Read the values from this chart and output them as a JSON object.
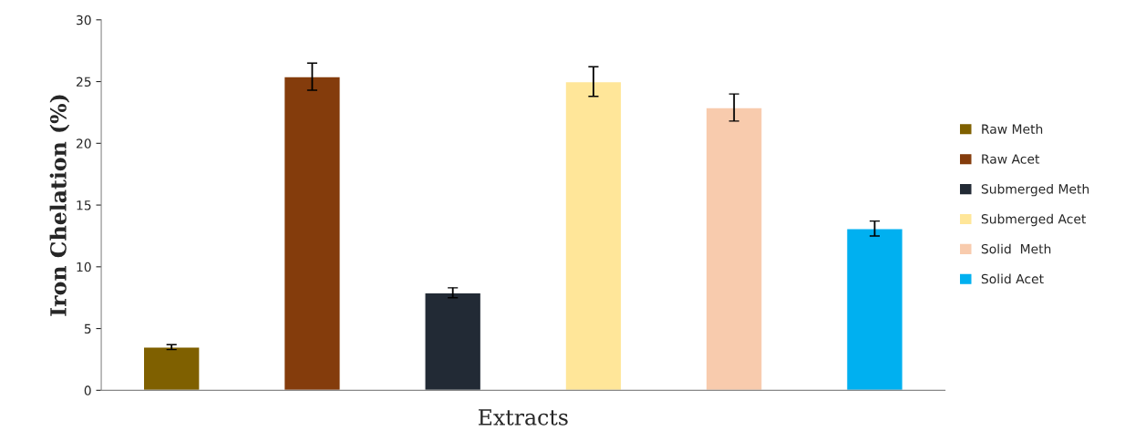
{
  "chart_data": {
    "type": "bar",
    "xlabel": "Extracts",
    "ylabel": "Iron Chelation (%)",
    "categories": [
      null,
      null,
      null,
      null,
      null,
      null
    ],
    "series": [
      {
        "name": "Raw Meth",
        "color": "#7f6000",
        "values": [
          3.5,
          null,
          null,
          null,
          null,
          null
        ],
        "errors": [
          0.2,
          null,
          null,
          null,
          null,
          null
        ]
      },
      {
        "name": "Raw Acet",
        "color": "#843c0c",
        "values": [
          null,
          25.4,
          null,
          null,
          null,
          null
        ],
        "errors": [
          null,
          1.1,
          null,
          null,
          null,
          null
        ]
      },
      {
        "name": "Submerged Meth",
        "color": "#222a35",
        "values": [
          null,
          null,
          7.9,
          null,
          null,
          null
        ],
        "errors": [
          null,
          null,
          0.4,
          null,
          null,
          null
        ]
      },
      {
        "name": "Submerged Acet",
        "color": "#ffe699",
        "values": [
          null,
          null,
          null,
          25.0,
          null,
          null
        ],
        "errors": [
          null,
          null,
          null,
          1.2,
          null,
          null
        ]
      },
      {
        "name": "Solid  Meth",
        "color": "#f8cbad",
        "values": [
          null,
          null,
          null,
          null,
          22.9,
          null
        ],
        "errors": [
          null,
          null,
          null,
          null,
          1.1,
          null
        ]
      },
      {
        "name": "Solid Acet",
        "color": "#00b0f0",
        "values": [
          null,
          null,
          null,
          null,
          null,
          13.1
        ],
        "errors": [
          null,
          null,
          null,
          null,
          null,
          0.6
        ]
      }
    ],
    "ylim": [
      0,
      30
    ],
    "yticks": [
      0,
      5,
      10,
      15,
      20,
      25,
      30
    ],
    "legend": "right",
    "grid": false
  }
}
